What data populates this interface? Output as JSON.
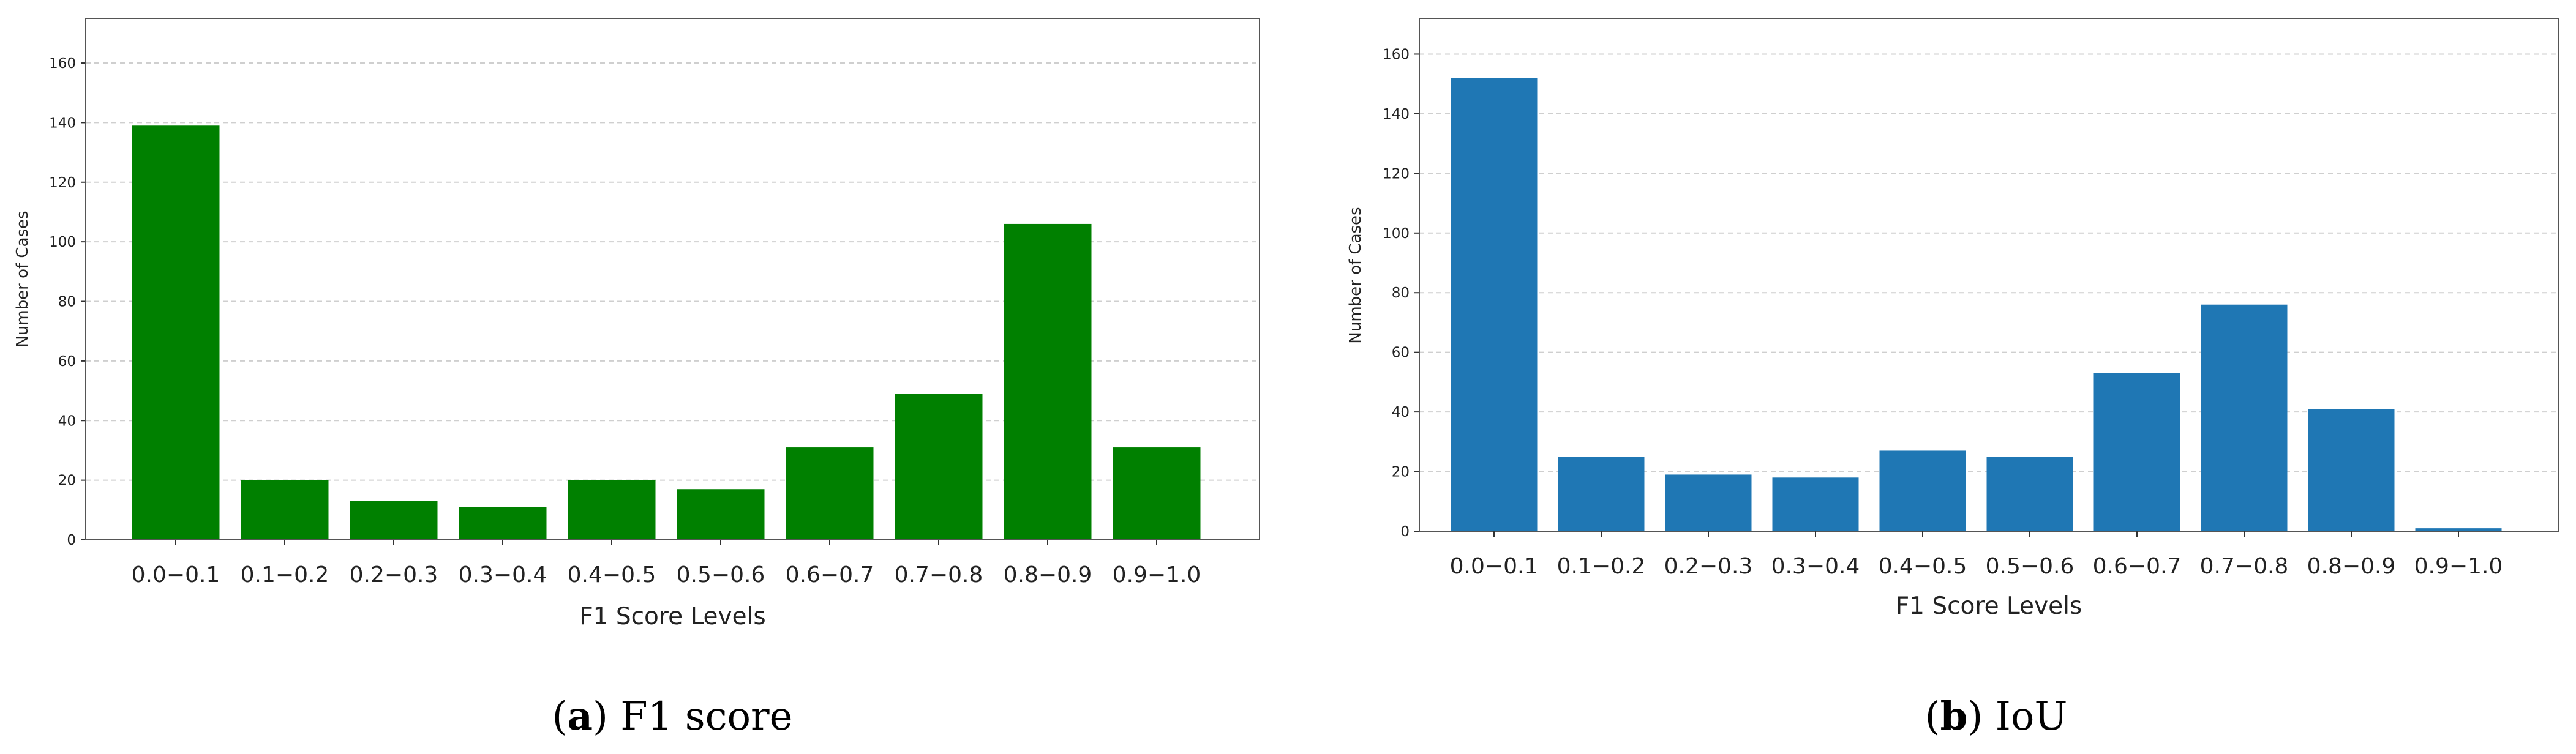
{
  "chart_data": [
    {
      "type": "bar",
      "panel": "a",
      "xlabel": "F1 Score Levels",
      "ylabel": "Number of Cases",
      "categories": [
        "0.0−0.1",
        "0.1−0.2",
        "0.2−0.3",
        "0.3−0.4",
        "0.4−0.5",
        "0.5−0.6",
        "0.6−0.7",
        "0.7−0.8",
        "0.8−0.9",
        "0.9−1.0"
      ],
      "values": [
        139,
        20,
        13,
        11,
        20,
        17,
        31,
        49,
        106,
        31
      ],
      "ylim": [
        0,
        175
      ],
      "yticks": [
        0,
        20,
        40,
        60,
        80,
        100,
        120,
        140,
        160
      ],
      "grid": "horizontal-dashed",
      "bar_color": "#008000",
      "caption": {
        "letter": "a",
        "text": "F1 score"
      }
    },
    {
      "type": "bar",
      "panel": "b",
      "xlabel": "F1 Score Levels",
      "ylabel": "Number of Cases",
      "categories": [
        "0.0−0.1",
        "0.1−0.2",
        "0.2−0.3",
        "0.3−0.4",
        "0.4−0.5",
        "0.5−0.6",
        "0.6−0.7",
        "0.7−0.8",
        "0.8−0.9",
        "0.9−1.0"
      ],
      "values": [
        152,
        25,
        19,
        18,
        27,
        25,
        53,
        76,
        41,
        1
      ],
      "ylim": [
        0,
        172
      ],
      "yticks": [
        0,
        20,
        40,
        60,
        80,
        100,
        120,
        140,
        160
      ],
      "grid": "horizontal-dashed",
      "bar_color": "#1f77b4",
      "caption": {
        "letter": "b",
        "text": "IoU"
      }
    }
  ]
}
